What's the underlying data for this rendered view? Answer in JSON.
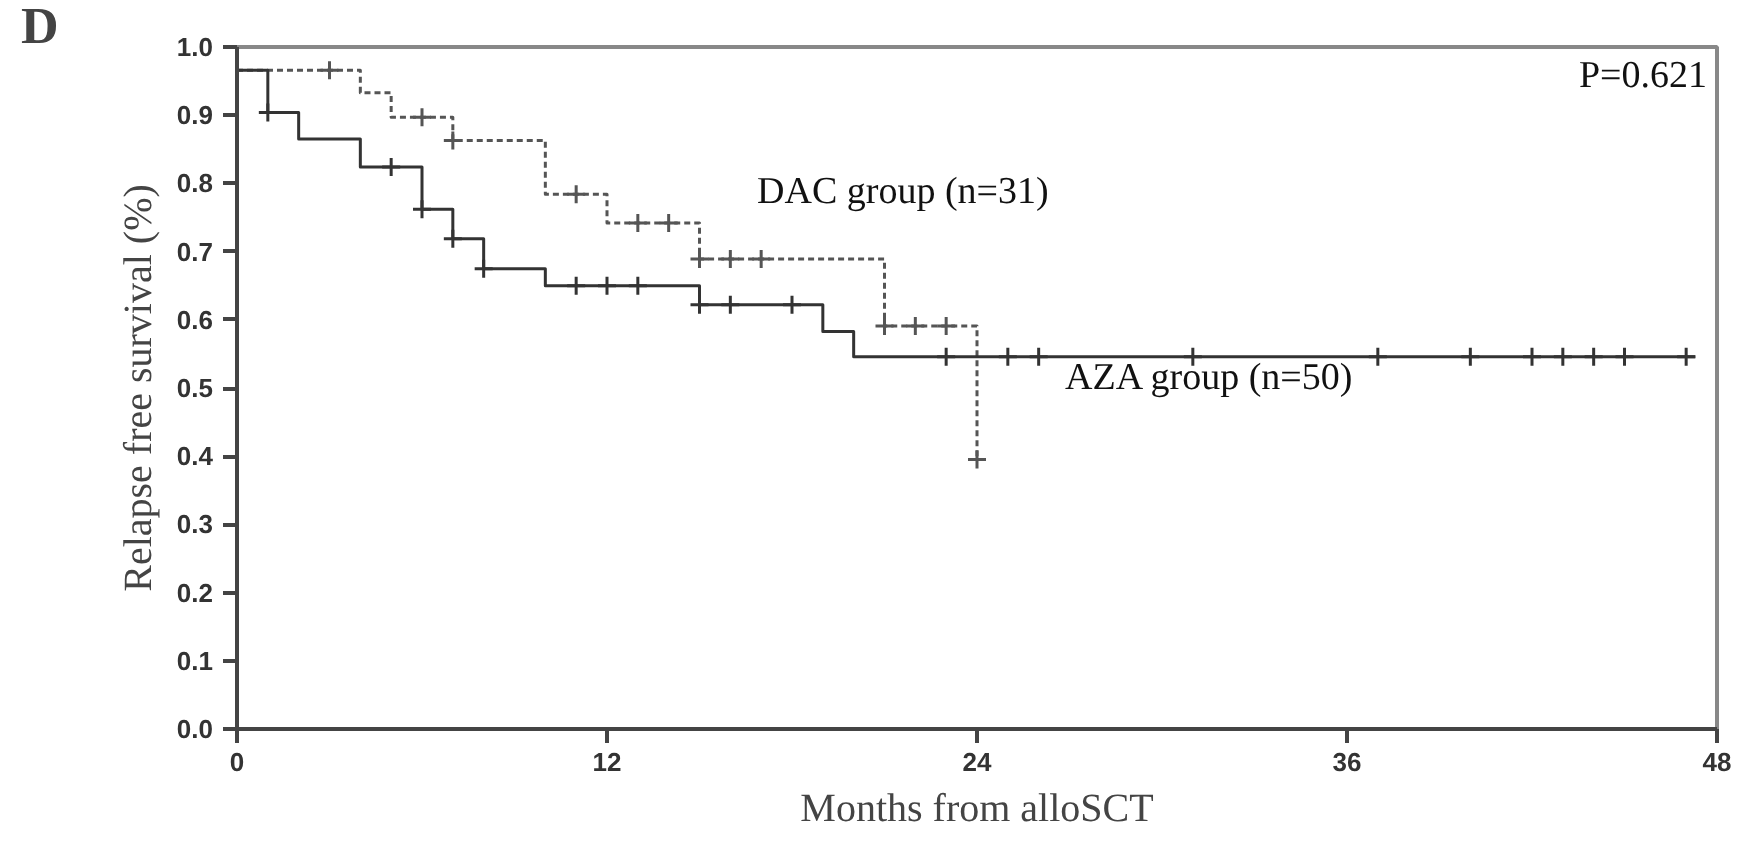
{
  "chart_data": {
    "type": "step",
    "title": "D",
    "xlabel": "Months from alloSCT",
    "ylabel": "Relapse free survival (%)",
    "xlim": [
      0,
      48
    ],
    "xticks": [
      0,
      12,
      24,
      36,
      48
    ],
    "ylim": [
      0,
      1.0
    ],
    "yticks": [
      {
        "value": 0,
        "label": "0.0"
      },
      0.1,
      0.2,
      0.3,
      0.4,
      0.5,
      0.6,
      0.7,
      0.8,
      0.9,
      {
        "value": 1,
        "label": "1.0"
      }
    ],
    "grid": false,
    "marker": "none",
    "series": [
      {
        "color": "#555555",
        "line_style": "dashed",
        "x": [
          0,
          4,
          5,
          7,
          10,
          12,
          15,
          21,
          24
        ],
        "values": [
          0.966,
          0.933,
          0.897,
          0.863,
          0.784,
          0.742,
          0.689,
          0.591,
          0.395
        ]
      },
      {
        "color": "#333333",
        "line_style": "solid",
        "x": [
          0,
          1,
          2,
          4,
          6,
          7,
          8,
          10,
          15,
          19,
          20,
          47.3
        ],
        "values": [
          0.966,
          0.904,
          0.865,
          0.824,
          0.762,
          0.719,
          0.675,
          0.65,
          0.622,
          0.583,
          0.546,
          0.546
        ]
      },
      {
        "type": "scatter",
        "marker": "cross",
        "color": "#555555",
        "x": [
          3,
          6,
          7,
          11,
          13,
          14,
          15,
          16,
          17,
          21,
          22,
          23,
          24
        ],
        "values": [
          0.966,
          0.897,
          0.863,
          0.784,
          0.742,
          0.742,
          0.689,
          0.689,
          0.689,
          0.591,
          0.591,
          0.591,
          0.395
        ]
      },
      {
        "type": "scatter",
        "marker": "cross",
        "color": "#333333",
        "x": [
          1,
          5,
          6,
          7,
          8,
          11,
          12,
          13,
          15,
          16,
          18,
          23,
          25,
          26,
          31,
          37,
          40,
          42,
          43,
          44,
          45,
          47
        ],
        "values": [
          0.904,
          0.824,
          0.762,
          0.719,
          0.675,
          0.65,
          0.65,
          0.65,
          0.622,
          0.622,
          0.622,
          0.546,
          0.546,
          0.546,
          0.546,
          0.546,
          0.546,
          0.546,
          0.546,
          0.546,
          0.546,
          0.546
        ]
      }
    ],
    "annotations": [
      "DAC group (n=31)",
      "AZA group (n=50)",
      "P=0.621"
    ]
  }
}
